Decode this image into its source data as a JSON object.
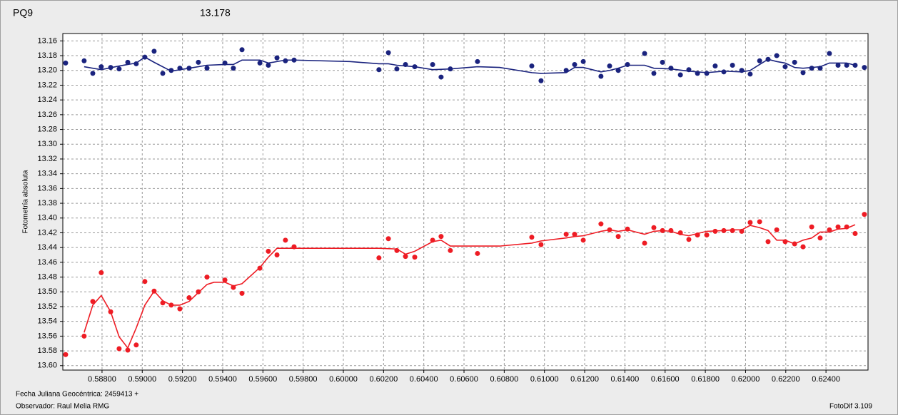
{
  "chart_data": {
    "type": "scatter",
    "title": "PQ9",
    "title_color": "#e8141c",
    "subtitle": "13.178",
    "subtitle_color": "#1a2a8a",
    "ylabel": "Fotometría absoluta",
    "xlabel": "Fecha Juliana Geocéntrica: 2459413 +",
    "observer": "Observador: Raul Melia RMG",
    "credit": "FotoDif 3.109",
    "grid": true,
    "y_inverted": true,
    "xlim": [
      0.58605,
      0.62609
    ],
    "ylim": [
      13.15,
      13.606
    ],
    "xticks": [
      {
        "value": 0.588,
        "label": "0.58800"
      },
      {
        "value": 0.59,
        "label": "0.59000"
      },
      {
        "value": 0.592,
        "label": "0.59200"
      },
      {
        "value": 0.594,
        "label": "0.59400"
      },
      {
        "value": 0.596,
        "label": "0.59600"
      },
      {
        "value": 0.598,
        "label": "0.59800"
      },
      {
        "value": 0.6,
        "label": "0.60000"
      },
      {
        "value": 0.602,
        "label": "0.60200"
      },
      {
        "value": 0.604,
        "label": "0.60400"
      },
      {
        "value": 0.606,
        "label": "0.60600"
      },
      {
        "value": 0.608,
        "label": "0.60800"
      },
      {
        "value": 0.61,
        "label": "0.61000"
      },
      {
        "value": 0.612,
        "label": "0.61200"
      },
      {
        "value": 0.614,
        "label": "0.61400"
      },
      {
        "value": 0.616,
        "label": "0.61600"
      },
      {
        "value": 0.618,
        "label": "0.61800"
      },
      {
        "value": 0.62,
        "label": "0.62000"
      },
      {
        "value": 0.622,
        "label": "0.62200"
      },
      {
        "value": 0.624,
        "label": "0.62400"
      }
    ],
    "yticks": [
      13.16,
      13.18,
      {
        "value": 13.2,
        "label": "13.20"
      },
      13.22,
      13.24,
      13.26,
      13.28,
      {
        "value": 13.3,
        "label": "13.30"
      },
      13.32,
      13.34,
      13.36,
      13.38,
      {
        "value": 13.4,
        "label": "13.40"
      },
      13.42,
      13.44,
      13.46,
      13.48,
      {
        "value": 13.5,
        "label": "13.50"
      },
      13.52,
      13.54,
      13.56,
      13.58,
      {
        "value": 13.6,
        "label": "13.60"
      }
    ],
    "series": [
      {
        "mode": "markers",
        "color": "#1a237e",
        "x": [
          0.58619,
          0.58711,
          0.58754,
          0.58796,
          0.58843,
          0.58885,
          0.58928,
          0.5897,
          0.59013,
          0.59059,
          0.59102,
          0.59144,
          0.59187,
          0.59233,
          0.59279,
          0.59322,
          0.59411,
          0.59453,
          0.59496,
          0.59585,
          0.59627,
          0.5967,
          0.59712,
          0.59755,
          0.60177,
          0.60224,
          0.60266,
          0.60309,
          0.60355,
          0.60444,
          0.60486,
          0.60532,
          0.60667,
          0.60937,
          0.60983,
          0.61108,
          0.6115,
          0.61193,
          0.61281,
          0.61324,
          0.61367,
          0.61413,
          0.61498,
          0.61544,
          0.61587,
          0.61629,
          0.61676,
          0.61718,
          0.61761,
          0.61807,
          0.61849,
          0.61892,
          0.61935,
          0.61981,
          0.62023,
          0.6207,
          0.62112,
          0.62155,
          0.62197,
          0.62244,
          0.62286,
          0.62329,
          0.62371,
          0.62417,
          0.6246,
          0.62503,
          0.62545,
          0.62591
        ],
        "values": [
          13.19,
          13.187,
          13.204,
          13.195,
          13.196,
          13.198,
          13.189,
          13.191,
          13.182,
          13.174,
          13.204,
          13.2,
          13.197,
          13.197,
          13.189,
          13.197,
          13.19,
          13.197,
          13.172,
          13.19,
          13.193,
          13.183,
          13.187,
          13.186,
          13.199,
          13.176,
          13.198,
          13.192,
          13.195,
          13.192,
          13.209,
          13.198,
          13.188,
          13.194,
          13.214,
          13.2,
          13.192,
          13.188,
          13.208,
          13.194,
          13.2,
          13.192,
          13.177,
          13.204,
          13.189,
          13.197,
          13.206,
          13.199,
          13.204,
          13.204,
          13.194,
          13.202,
          13.193,
          13.2,
          13.205,
          13.187,
          13.185,
          13.18,
          13.195,
          13.189,
          13.203,
          13.197,
          13.197,
          13.177,
          13.193,
          13.193,
          13.193,
          13.196
        ]
      },
      {
        "mode": "line",
        "color": "#1a237e",
        "x": [
          0.58711,
          0.58754,
          0.58796,
          0.58885,
          0.58928,
          0.5897,
          0.59013,
          0.59059,
          0.59144,
          0.59233,
          0.59322,
          0.59411,
          0.59453,
          0.59496,
          0.59585,
          0.59627,
          0.59712,
          0.59755,
          0.60032,
          0.60177,
          0.60224,
          0.60266,
          0.60355,
          0.60444,
          0.60532,
          0.60667,
          0.60777,
          0.60937,
          0.60983,
          0.61108,
          0.6115,
          0.61193,
          0.61281,
          0.61324,
          0.61367,
          0.61413,
          0.61498,
          0.61544,
          0.61629,
          0.61718,
          0.61807,
          0.61892,
          0.61981,
          0.62023,
          0.6207,
          0.62112,
          0.62155,
          0.62197,
          0.62244,
          0.62286,
          0.62371,
          0.62417,
          0.62503,
          0.62545
        ],
        "values": [
          13.195,
          13.197,
          13.199,
          13.194,
          13.192,
          13.19,
          13.182,
          13.189,
          13.201,
          13.197,
          13.193,
          13.192,
          13.192,
          13.186,
          13.186,
          13.19,
          13.186,
          13.186,
          13.188,
          13.191,
          13.191,
          13.193,
          13.195,
          13.199,
          13.198,
          13.195,
          13.196,
          13.203,
          13.204,
          13.203,
          13.196,
          13.196,
          13.202,
          13.2,
          13.197,
          13.193,
          13.193,
          13.197,
          13.198,
          13.201,
          13.203,
          13.201,
          13.202,
          13.2,
          13.192,
          13.185,
          13.188,
          13.19,
          13.196,
          13.197,
          13.195,
          13.19,
          13.19,
          13.193
        ]
      },
      {
        "mode": "markers",
        "color": "#ee1c24",
        "x": [
          0.58619,
          0.58711,
          0.58754,
          0.58796,
          0.58843,
          0.58885,
          0.58928,
          0.5897,
          0.59013,
          0.59059,
          0.59102,
          0.59144,
          0.59187,
          0.59233,
          0.59279,
          0.59322,
          0.59411,
          0.59453,
          0.59496,
          0.59585,
          0.59627,
          0.5967,
          0.59712,
          0.59755,
          0.60177,
          0.60224,
          0.60266,
          0.60309,
          0.60355,
          0.60444,
          0.60486,
          0.60532,
          0.60667,
          0.60937,
          0.60983,
          0.61108,
          0.6115,
          0.61193,
          0.61281,
          0.61324,
          0.61367,
          0.61413,
          0.61498,
          0.61544,
          0.61587,
          0.61629,
          0.61676,
          0.61718,
          0.61761,
          0.61807,
          0.61849,
          0.61892,
          0.61935,
          0.61981,
          0.62023,
          0.6207,
          0.62112,
          0.62155,
          0.62197,
          0.62244,
          0.62286,
          0.62329,
          0.62371,
          0.62417,
          0.6246,
          0.62503,
          0.62545,
          0.62591
        ],
        "values": [
          13.585,
          13.56,
          13.513,
          13.474,
          13.527,
          13.577,
          13.579,
          13.572,
          13.486,
          13.499,
          13.515,
          13.518,
          13.523,
          13.508,
          13.5,
          13.48,
          13.484,
          13.494,
          13.502,
          13.468,
          13.445,
          13.45,
          13.43,
          13.439,
          13.454,
          13.428,
          13.444,
          13.452,
          13.453,
          13.43,
          13.425,
          13.444,
          13.448,
          13.426,
          13.436,
          13.422,
          13.422,
          13.43,
          13.408,
          13.416,
          13.425,
          13.415,
          13.434,
          13.413,
          13.417,
          13.417,
          13.42,
          13.429,
          13.423,
          13.423,
          13.418,
          13.417,
          13.417,
          13.418,
          13.406,
          13.405,
          13.432,
          13.416,
          13.432,
          13.435,
          13.439,
          13.412,
          13.427,
          13.416,
          13.412,
          13.412,
          13.421,
          13.395
        ]
      },
      {
        "mode": "line",
        "color": "#ee1c24",
        "x": [
          0.58711,
          0.58754,
          0.58796,
          0.58843,
          0.58885,
          0.58928,
          0.5897,
          0.59013,
          0.59059,
          0.59102,
          0.59144,
          0.59187,
          0.59233,
          0.59279,
          0.59322,
          0.59357,
          0.59411,
          0.59453,
          0.59496,
          0.59585,
          0.59627,
          0.5967,
          0.59755,
          0.60177,
          0.60266,
          0.60309,
          0.60355,
          0.60444,
          0.60486,
          0.60532,
          0.60667,
          0.60777,
          0.60937,
          0.60983,
          0.61108,
          0.6115,
          0.61193,
          0.61281,
          0.61324,
          0.61367,
          0.61413,
          0.61498,
          0.61544,
          0.61587,
          0.61629,
          0.61676,
          0.61718,
          0.61761,
          0.61807,
          0.61892,
          0.61935,
          0.61981,
          0.62023,
          0.6207,
          0.62112,
          0.62155,
          0.62197,
          0.62244,
          0.62286,
          0.62329,
          0.62371,
          0.62417,
          0.6246,
          0.62503,
          0.62545
        ],
        "values": [
          13.555,
          13.518,
          13.505,
          13.527,
          13.561,
          13.576,
          13.549,
          13.518,
          13.499,
          13.512,
          13.518,
          13.518,
          13.513,
          13.501,
          13.49,
          13.487,
          13.487,
          13.492,
          13.489,
          13.467,
          13.453,
          13.441,
          13.441,
          13.441,
          13.442,
          13.449,
          13.445,
          13.432,
          13.43,
          13.438,
          13.438,
          13.438,
          13.434,
          13.431,
          13.427,
          13.425,
          13.424,
          13.418,
          13.416,
          13.418,
          13.416,
          13.422,
          13.418,
          13.417,
          13.418,
          13.422,
          13.424,
          13.421,
          13.418,
          13.417,
          13.416,
          13.416,
          13.41,
          13.413,
          13.417,
          13.43,
          13.43,
          13.435,
          13.43,
          13.427,
          13.419,
          13.419,
          13.415,
          13.414,
          13.409
        ]
      }
    ]
  }
}
